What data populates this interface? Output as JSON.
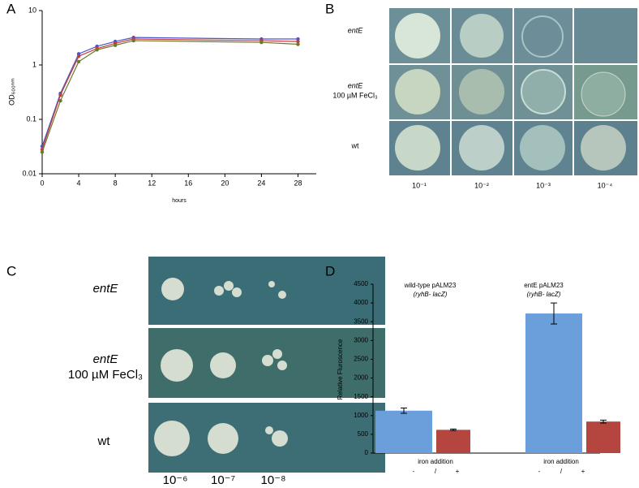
{
  "chart_data": [
    {
      "type": "line",
      "panel_label": "A",
      "xlabel": "hours",
      "ylabel": "OD₆₀₀ₙₘ",
      "x": [
        0,
        2,
        4,
        6,
        8,
        10,
        24,
        28
      ],
      "series": [
        {
          "color": "#4a55c8",
          "values": [
            0.032,
            0.3,
            1.6,
            2.2,
            2.7,
            3.2,
            3.0,
            3.0
          ]
        },
        {
          "color": "#c83a3a",
          "values": [
            0.028,
            0.28,
            1.45,
            2.0,
            2.5,
            3.0,
            2.8,
            2.7
          ]
        },
        {
          "color": "#6a7a2a",
          "values": [
            0.025,
            0.22,
            1.15,
            1.9,
            2.3,
            2.8,
            2.6,
            2.4
          ]
        }
      ],
      "xlim": [
        0,
        30
      ],
      "xticks": [
        0,
        4,
        8,
        12,
        16,
        20,
        24,
        28
      ],
      "ylim": [
        0.01,
        10
      ],
      "yticks": [
        0.01,
        0.1,
        1,
        10
      ],
      "log_y": true
    },
    {
      "type": "bar",
      "panel_label": "D",
      "ylabel": "Relative Fluroscence",
      "categories": [
        "wild-type pALM23",
        "entE pALM23"
      ],
      "category_subtitles": [
        "(ryhB- lacZ)",
        "(ryhB- lacZ)"
      ],
      "series": [
        {
          "color": "#6a9fdc",
          "values": [
            1130,
            3720
          ],
          "errors": [
            70,
            280
          ]
        },
        {
          "color": "#b5463f",
          "values": [
            620,
            840
          ],
          "errors": [
            20,
            40
          ]
        }
      ],
      "group_label": "iron addition",
      "group_marks": [
        "-",
        "/",
        "+"
      ],
      "ylim": [
        0,
        4500
      ],
      "yticks": [
        0,
        500,
        1000,
        1500,
        2000,
        2500,
        3000,
        3500,
        4000,
        4500
      ]
    }
  ],
  "photo_panels": [
    {
      "panel_label": "B",
      "row_labels": [
        [
          "entE"
        ],
        [
          "entE",
          "100 µM FeCl₃"
        ],
        [
          "wt"
        ]
      ],
      "column_labels": [
        "10⁻¹",
        "10⁻²",
        "10⁻³",
        "10⁻⁴"
      ]
    },
    {
      "panel_label": "C",
      "row_labels": [
        [
          "entE"
        ],
        [
          "entE",
          "100 µM FeCl₃"
        ],
        [
          "wt"
        ]
      ],
      "column_labels": [
        "10⁻⁶",
        "10⁻⁷",
        "10⁻⁸"
      ]
    }
  ]
}
